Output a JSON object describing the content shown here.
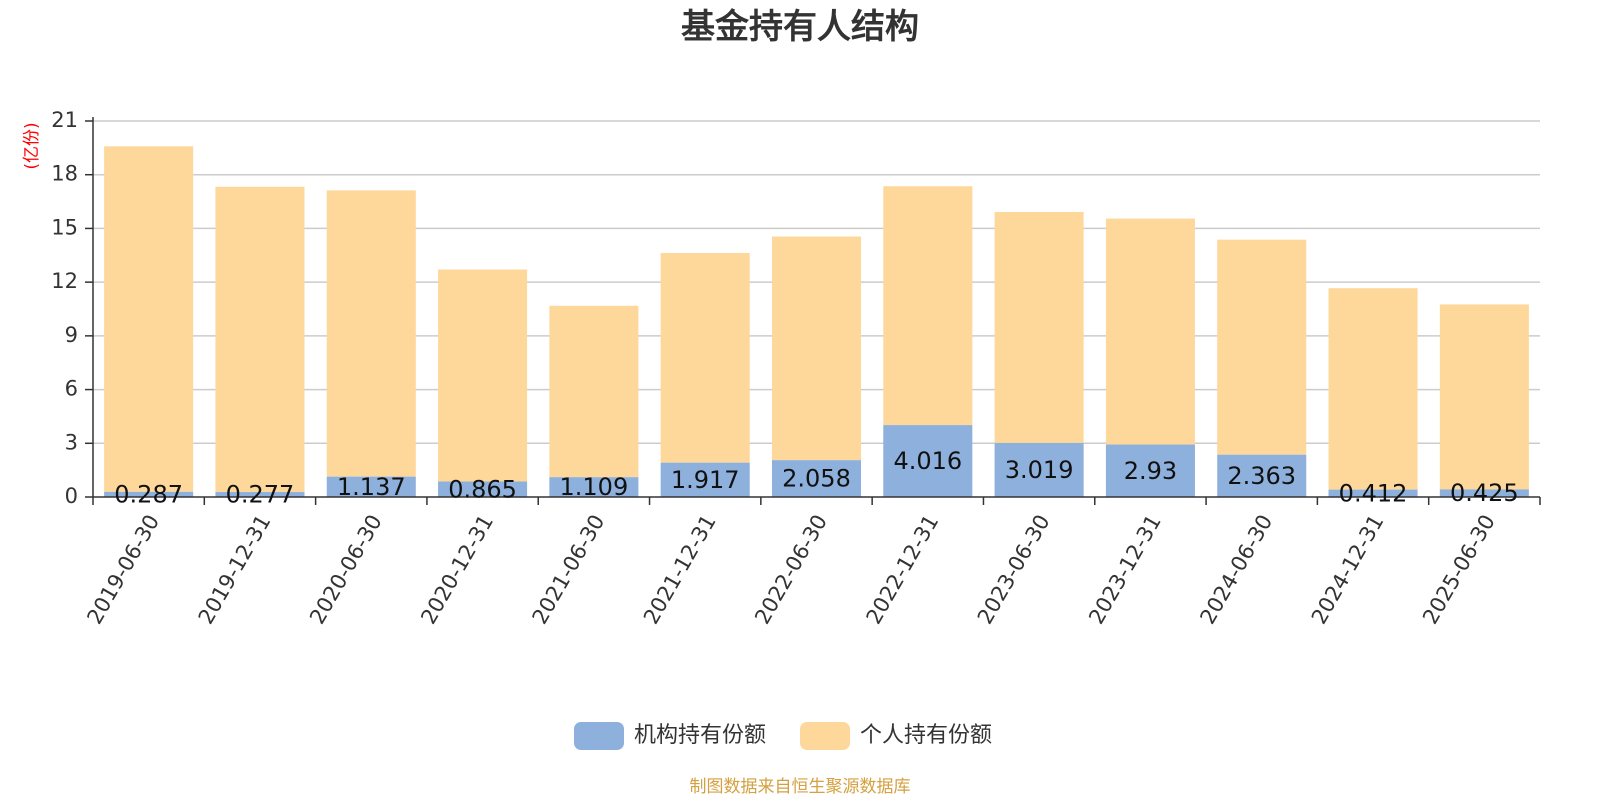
{
  "chart_data": {
    "type": "bar",
    "stacked": true,
    "title": "基金持有人结构",
    "ylabel": "(亿份)",
    "ylim": [
      0,
      21
    ],
    "yticks": [
      0,
      3,
      6,
      9,
      12,
      15,
      18,
      21
    ],
    "grid": true,
    "legend_position": "bottom",
    "categories": [
      "2019-06-30",
      "2019-12-31",
      "2020-06-30",
      "2020-12-31",
      "2021-06-30",
      "2021-12-31",
      "2022-06-30",
      "2022-12-31",
      "2023-06-30",
      "2023-12-31",
      "2024-06-30",
      "2024-12-31",
      "2025-06-30"
    ],
    "series": [
      {
        "name": "机构持有份额",
        "color": "#8eb0dc",
        "values": [
          0.287,
          0.277,
          1.137,
          0.865,
          1.109,
          1.917,
          2.058,
          4.016,
          3.019,
          2.93,
          2.363,
          0.412,
          0.425
        ],
        "labels": [
          "0.287",
          "0.277",
          "1.137",
          "0.865",
          "1.109",
          "1.917",
          "2.058",
          "4.016",
          "3.019",
          "2.93",
          "2.363",
          "0.412",
          "0.425"
        ]
      },
      {
        "name": "个人持有份额",
        "color": "#fdd89a",
        "values": [
          19.3,
          17.05,
          15.99,
          11.84,
          9.57,
          11.71,
          12.49,
          13.34,
          12.9,
          12.62,
          12.01,
          11.25,
          10.33
        ]
      }
    ]
  },
  "footer": {
    "source": "制图数据来自恒生聚源数据库"
  }
}
